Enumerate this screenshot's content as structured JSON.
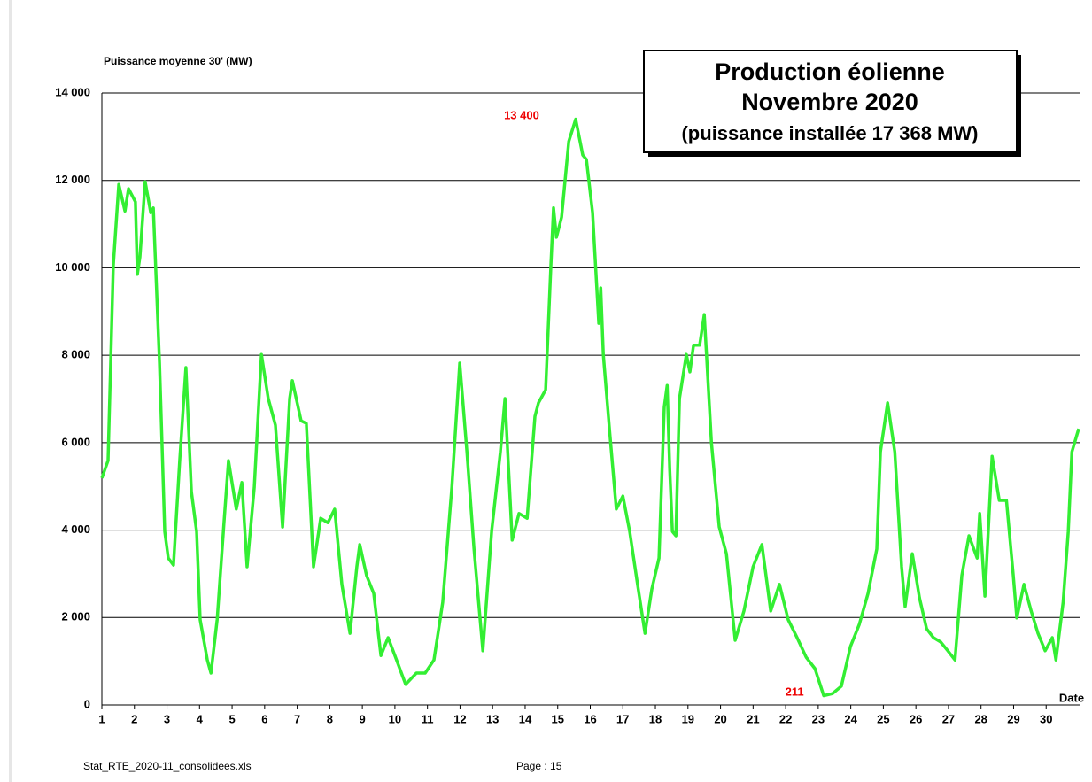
{
  "chart_data": {
    "type": "line",
    "title": [
      "Production éolienne",
      "Novembre 2020",
      "(puissance installée 17 368 MW)"
    ],
    "y_label": "Puissance moyenne 30'  (MW)",
    "x_label": "Date",
    "annotations": [
      "13 400",
      "211"
    ],
    "footer": [
      "Stat_RTE_2020-11_consolidees.xls",
      "Page : 15"
    ],
    "xlim": [
      1,
      31
    ],
    "ylim": [
      0,
      14000
    ],
    "xticks": [
      1,
      2,
      3,
      4,
      5,
      6,
      7,
      8,
      9,
      10,
      11,
      12,
      13,
      14,
      15,
      16,
      17,
      18,
      19,
      20,
      21,
      22,
      23,
      24,
      25,
      26,
      27,
      28,
      29,
      30
    ],
    "yticks": [
      {
        "value": 0,
        "label": "0"
      },
      {
        "value": 2000,
        "label": "2 000"
      },
      {
        "value": 4000,
        "label": "4 000"
      },
      {
        "value": 6000,
        "label": "6 000"
      },
      {
        "value": 8000,
        "label": "8 000"
      },
      {
        "value": 10000,
        "label": "10 000"
      },
      {
        "value": 12000,
        "label": "12 000"
      },
      {
        "value": 14000,
        "label": "14 000"
      }
    ],
    "grid": true,
    "series": [
      {
        "color": "#33ee33",
        "x": [
          1.0,
          1.19,
          1.35,
          1.52,
          1.71,
          1.82,
          2.03,
          2.09,
          2.17,
          2.33,
          2.5,
          2.58,
          2.77,
          2.93,
          3.04,
          3.2,
          3.39,
          3.58,
          3.75,
          3.91,
          4.02,
          4.24,
          4.35,
          4.54,
          4.75,
          4.89,
          5.13,
          5.3,
          5.46,
          5.68,
          5.9,
          6.11,
          6.33,
          6.55,
          6.77,
          6.85,
          7.12,
          7.28,
          7.5,
          7.72,
          7.94,
          8.15,
          8.37,
          8.62,
          8.83,
          8.92,
          9.13,
          9.35,
          9.57,
          9.79,
          10.0,
          10.33,
          10.66,
          10.93,
          11.2,
          11.47,
          11.75,
          11.99,
          12.21,
          12.43,
          12.7,
          12.97,
          13.24,
          13.38,
          13.6,
          13.81,
          14.06,
          14.3,
          14.41,
          14.63,
          14.79,
          14.87,
          14.96,
          15.12,
          15.34,
          15.55,
          15.77,
          15.88,
          16.07,
          16.26,
          16.32,
          16.4,
          16.59,
          16.8,
          17.0,
          17.21,
          17.43,
          17.68,
          17.89,
          18.11,
          18.27,
          18.36,
          18.44,
          18.52,
          18.63,
          18.74,
          18.95,
          19.06,
          19.17,
          19.36,
          19.5,
          19.72,
          19.96,
          20.18,
          20.45,
          20.72,
          21.0,
          21.27,
          21.54,
          21.81,
          22.08,
          22.35,
          22.63,
          22.9,
          23.17,
          23.44,
          23.71,
          23.99,
          24.26,
          24.53,
          24.8,
          24.91,
          25.13,
          25.35,
          25.56,
          25.67,
          25.89,
          26.11,
          26.33,
          26.54,
          26.76,
          26.98,
          27.2,
          27.41,
          27.63,
          27.88,
          27.96,
          28.12,
          28.34,
          28.56,
          28.78,
          28.99,
          29.1,
          29.32,
          29.54,
          29.75,
          29.97,
          30.19,
          30.3,
          30.52,
          30.68,
          30.79,
          31.0
        ],
        "values": [
          5190,
          5590,
          10050,
          11910,
          11300,
          11810,
          11510,
          9850,
          10250,
          11970,
          11260,
          11370,
          7820,
          3970,
          3360,
          3200,
          5590,
          7720,
          4880,
          3970,
          1950,
          1030,
          730,
          1950,
          4170,
          5590,
          4480,
          5090,
          3160,
          4980,
          8020,
          7010,
          6400,
          4070,
          7010,
          7420,
          6500,
          6440,
          3160,
          4270,
          4170,
          4480,
          2760,
          1640,
          3160,
          3670,
          2960,
          2550,
          1130,
          1540,
          1130,
          470,
          730,
          730,
          1030,
          2350,
          4980,
          7820,
          5790,
          3570,
          1240,
          3970,
          5790,
          7010,
          3770,
          4380,
          4270,
          6600,
          6910,
          7210,
          10050,
          11370,
          10700,
          11160,
          12890,
          13400,
          12580,
          12480,
          11260,
          8730,
          9540,
          8020,
          6300,
          4480,
          4780,
          3970,
          2860,
          1640,
          2650,
          3360,
          6810,
          7310,
          5390,
          3970,
          3870,
          7010,
          8020,
          7620,
          8230,
          8230,
          8930,
          6000,
          4070,
          3460,
          1480,
          2150,
          3160,
          3670,
          2150,
          2760,
          1950,
          1540,
          1090,
          830,
          211,
          260,
          430,
          1340,
          1840,
          2550,
          3570,
          5790,
          6910,
          5790,
          3160,
          2250,
          3460,
          2450,
          1740,
          1540,
          1440,
          1240,
          1030,
          2960,
          3870,
          3360,
          4380,
          2490,
          5690,
          4680,
          4680,
          2960,
          1990,
          2760,
          2150,
          1640,
          1240,
          1540,
          1030,
          2350,
          3970,
          5790,
          6320
        ]
      }
    ]
  }
}
